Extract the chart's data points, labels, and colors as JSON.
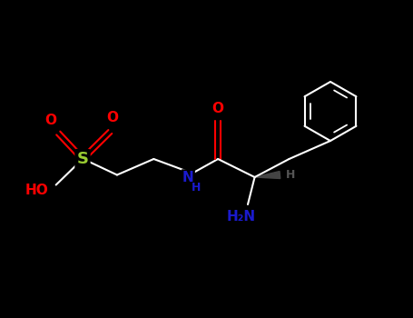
{
  "background_color": "#000000",
  "bond_color": "#ffffff",
  "atom_colors": {
    "O": "#ff0000",
    "N": "#1a1acd",
    "S": "#9acd32",
    "C": "#ffffff",
    "H": "#ffffff",
    "HO": "#ff0000"
  },
  "title": "",
  "figsize": [
    4.55,
    3.5
  ],
  "dpi": 100,
  "xlim": [
    0,
    9
  ],
  "ylim": [
    0,
    7
  ]
}
